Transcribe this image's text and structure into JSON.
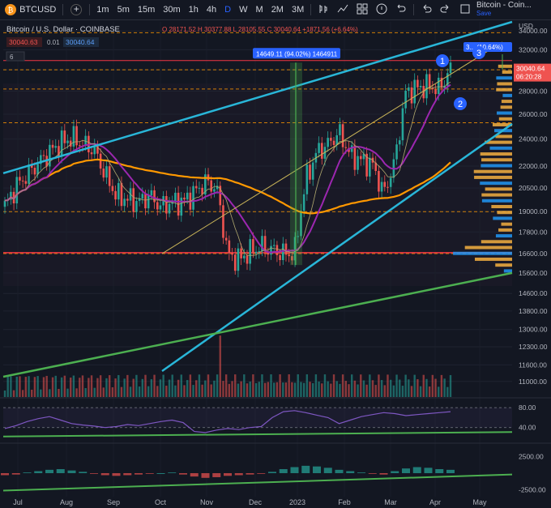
{
  "toolbar": {
    "symbol": "BTCUSD",
    "add_label": "+",
    "intervals": [
      "1m",
      "5m",
      "15m",
      "30m",
      "1h",
      "4h",
      "D",
      "W",
      "M",
      "2M",
      "3M"
    ],
    "active_interval": "D",
    "brand_title": "Bitcoin - Coin...",
    "save_label": "Save"
  },
  "legend": {
    "title": "Bitcoin / U.S. Dollar · COINBASE",
    "ohlc": "O 28171.52 H 30377.88 L 28105.55 C 30040.64 +1871.56 (+6.64%)",
    "bid": "30040.63",
    "spread": "0.01",
    "ask": "30040.64",
    "indicators_count": "6"
  },
  "annotations": {
    "measure_label": "14649.11 (94.02%) 1464911",
    "target_label": "3... (10.64%)",
    "marker_1": "1",
    "marker_2": "2",
    "marker_3": "3",
    "current_price": "30040.64",
    "countdown": "06:20:28"
  },
  "colors": {
    "up": "#26a69a",
    "down": "#ef5350",
    "channel": "#29b6d8",
    "ma_orange": "#ff9800",
    "ma_purple": "#9c27b0",
    "support_green": "#4caf50",
    "resistance_red": "#f23645"
  },
  "chart_data": [
    {
      "type": "line",
      "title": "Bitcoin / U.S. Dollar · COINBASE",
      "x_ticks": [
        "Jul",
        "Aug",
        "Sep",
        "Oct",
        "Nov",
        "Dec",
        "2023",
        "Feb",
        "Mar",
        "Apr",
        "May"
      ],
      "y_label": "USD",
      "y_ticks": [
        "34000.00",
        "32000.00",
        "30000.00",
        "28000.00",
        "26000.00",
        "24000.00",
        "22000.00",
        "20500.00",
        "19000.00",
        "17800.00",
        "16600.00",
        "15600.00",
        "14600.00",
        "13800.00",
        "13000.00",
        "12300.00",
        "11600.00",
        "11000.00"
      ],
      "ylim": [
        10600,
        35000
      ],
      "scale": "log",
      "series": [
        {
          "values": [
            19300,
            20600,
            21400,
            22200,
            23000,
            23700,
            24100,
            23600,
            23200,
            21400,
            20000,
            19800,
            19600,
            20000,
            19300,
            19600,
            19600,
            20200,
            20900,
            20500,
            16500,
            16300,
            16700,
            17000,
            16800,
            16600,
            16600,
            21000,
            23000,
            23600,
            24500,
            22800,
            22400,
            22100,
            20100,
            22300,
            27900,
            28300,
            28500,
            28200,
            30040
          ]
        }
      ],
      "annotations": [
        "14649.11 (94.02%) 1464911",
        "30040.64",
        "06:20:28"
      ],
      "grid": true,
      "legend": "top-left"
    },
    {
      "type": "line",
      "y_ticks": [
        "80.00",
        "40.00"
      ],
      "ylim": [
        20,
        90
      ],
      "series": [
        {
          "values": [
            38,
            44,
            52,
            58,
            62,
            55,
            48,
            45,
            43,
            40,
            42,
            46,
            44,
            48,
            52,
            55,
            50,
            32,
            30,
            35,
            38,
            36,
            40,
            42,
            60,
            72,
            74,
            70,
            65,
            60,
            48,
            55,
            62,
            66,
            70,
            68,
            64,
            66,
            68,
            70,
            72
          ]
        }
      ]
    },
    {
      "type": "bar",
      "y_ticks": [
        "2500.00",
        "-2500.00"
      ],
      "ylim": [
        -3500,
        3500
      ],
      "series": [
        {
          "values": [
            -300,
            -200,
            100,
            300,
            500,
            600,
            400,
            200,
            -100,
            -300,
            -400,
            -300,
            -200,
            -100,
            0,
            100,
            -200,
            -500,
            -700,
            -600,
            -400,
            -300,
            -200,
            -100,
            200,
            600,
            900,
            1100,
            1000,
            800,
            500,
            300,
            100,
            -100,
            -200,
            300,
            700,
            900,
            800,
            600,
            500
          ]
        }
      ]
    }
  ]
}
